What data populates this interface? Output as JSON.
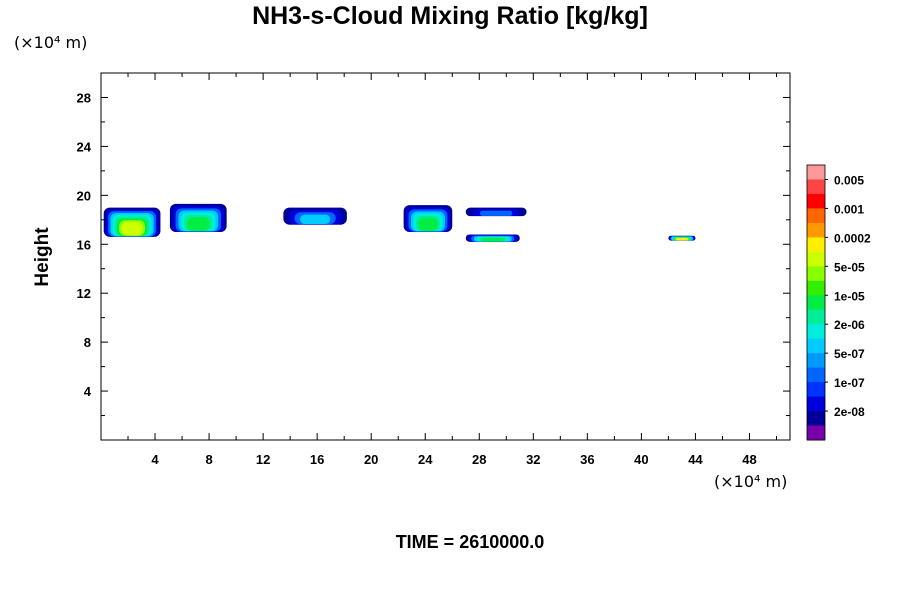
{
  "chart_data": {
    "type": "heatmap",
    "title": "NH3-s-Cloud Mixing Ratio [kg/kg]",
    "xlabel": "",
    "ylabel": "Height",
    "x_unit": "(×10⁴ m)",
    "y_unit": "(×10⁴ m)",
    "xlim": [
      0,
      51
    ],
    "ylim": [
      0,
      30
    ],
    "x_ticks": [
      4,
      8,
      12,
      16,
      20,
      24,
      28,
      32,
      36,
      40,
      44,
      48
    ],
    "y_ticks": [
      4,
      8,
      12,
      16,
      20,
      24,
      28
    ],
    "colorbar": {
      "labels": [
        "0.005",
        "0.001",
        "0.0002",
        "5e-05",
        "1e-05",
        "2e-06",
        "5e-07",
        "1e-07",
        "2e-08"
      ],
      "colors_top_to_bottom": [
        "#ff9999",
        "#ff4444",
        "#ff0000",
        "#ff6600",
        "#ff9900",
        "#ffee00",
        "#ccff00",
        "#88ff00",
        "#33ee00",
        "#00ee44",
        "#00ee99",
        "#00eedd",
        "#00ccff",
        "#0099ff",
        "#0066ff",
        "#0033ff",
        "#0000dd",
        "#000099",
        "#7700aa"
      ]
    },
    "cloud_regions": [
      {
        "x": [
          0.2,
          4.4
        ],
        "y": [
          16.6,
          19.0
        ],
        "max_level": "5e-05"
      },
      {
        "x": [
          5.1,
          9.3
        ],
        "y": [
          17.0,
          19.3
        ],
        "max_level": "1e-05"
      },
      {
        "x": [
          13.5,
          18.2
        ],
        "y": [
          17.6,
          19.0
        ],
        "max_level": "5e-07"
      },
      {
        "x": [
          22.4,
          26.0
        ],
        "y": [
          17.0,
          19.2
        ],
        "max_level": "1e-05"
      },
      {
        "x": [
          27.0,
          31.5
        ],
        "y": [
          18.3,
          19.0
        ],
        "max_level": "1e-07"
      },
      {
        "x": [
          27.0,
          31.0
        ],
        "y": [
          16.2,
          16.8
        ],
        "max_level": "1e-05"
      },
      {
        "x": [
          42.0,
          44.0
        ],
        "y": [
          16.3,
          16.7
        ],
        "max_level": "0.0002"
      }
    ],
    "time_label": "TIME = 2610000.0"
  }
}
